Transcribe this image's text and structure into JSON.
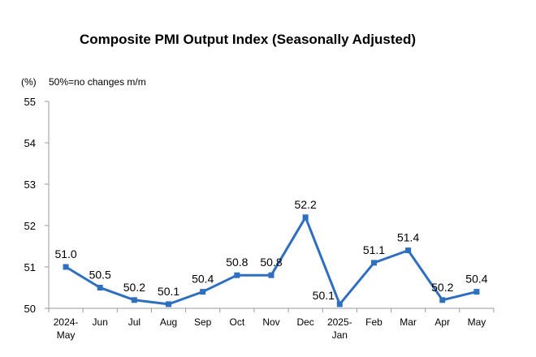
{
  "chart_data": {
    "type": "line",
    "title": "Composite PMI Output Index (Seasonally Adjusted)",
    "y_unit": "(%)",
    "note": "50%=no changes m/m",
    "categories": [
      [
        "2024-",
        "May"
      ],
      [
        "Jun"
      ],
      [
        "Jul"
      ],
      [
        "Aug"
      ],
      [
        "Sep"
      ],
      [
        "Oct"
      ],
      [
        "Nov"
      ],
      [
        "Dec"
      ],
      [
        "2025-",
        "Jan"
      ],
      [
        "Feb"
      ],
      [
        "Mar"
      ],
      [
        "Apr"
      ],
      [
        "May"
      ]
    ],
    "values": [
      51.0,
      50.5,
      50.2,
      50.1,
      50.4,
      50.8,
      50.8,
      52.2,
      50.1,
      51.1,
      51.4,
      50.2,
      50.4
    ],
    "data_labels": [
      "51.0",
      "50.5",
      "50.2",
      "50.1",
      "50.4",
      "50.8",
      "50.8",
      "52.2",
      "50.1",
      "51.1",
      "51.4",
      "50.2",
      "50.4"
    ],
    "ylim": [
      50,
      55
    ],
    "yticks": [
      "50",
      "51",
      "52",
      "53",
      "54",
      "55"
    ],
    "grid": false,
    "line_color": "#2e6fc0",
    "marker_color": "#2e6fc0"
  }
}
